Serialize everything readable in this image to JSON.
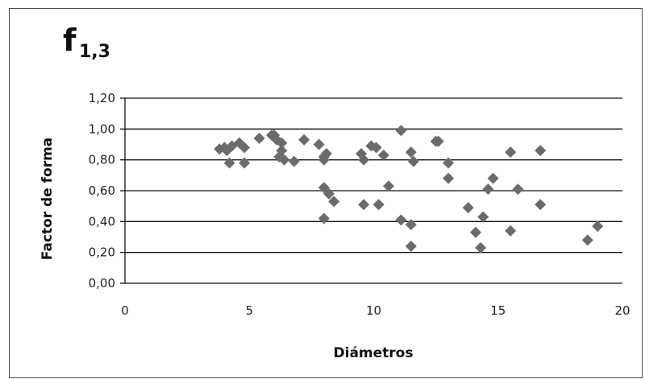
{
  "chart_data": {
    "type": "scatter",
    "title": "f",
    "title_subscript": "1,3",
    "xlabel": "Diámetros",
    "ylabel": "Factor de forma",
    "xlim": [
      0,
      20
    ],
    "ylim": [
      0,
      1.2
    ],
    "x_ticks": [
      "0",
      "5",
      "10",
      "15",
      "20"
    ],
    "y_ticks": [
      "0,00",
      "0,20",
      "0,40",
      "0,60",
      "0,80",
      "1,00",
      "1,20"
    ],
    "grid": "horizontal",
    "legend": "none",
    "marker": "diamond",
    "marker_color": "#6b6b6b",
    "points": [
      {
        "x": 3.8,
        "y": 0.87
      },
      {
        "x": 4.0,
        "y": 0.88
      },
      {
        "x": 4.1,
        "y": 0.86
      },
      {
        "x": 4.2,
        "y": 0.78
      },
      {
        "x": 4.3,
        "y": 0.89
      },
      {
        "x": 4.6,
        "y": 0.91
      },
      {
        "x": 4.8,
        "y": 0.88
      },
      {
        "x": 4.8,
        "y": 0.78
      },
      {
        "x": 5.4,
        "y": 0.94
      },
      {
        "x": 5.9,
        "y": 0.96
      },
      {
        "x": 6.0,
        "y": 0.96
      },
      {
        "x": 6.1,
        "y": 0.93
      },
      {
        "x": 6.2,
        "y": 0.82
      },
      {
        "x": 6.3,
        "y": 0.86
      },
      {
        "x": 6.3,
        "y": 0.91
      },
      {
        "x": 6.4,
        "y": 0.8
      },
      {
        "x": 6.8,
        "y": 0.79
      },
      {
        "x": 7.2,
        "y": 0.93
      },
      {
        "x": 7.8,
        "y": 0.9
      },
      {
        "x": 8.0,
        "y": 0.8
      },
      {
        "x": 8.0,
        "y": 0.82
      },
      {
        "x": 8.0,
        "y": 0.62
      },
      {
        "x": 8.0,
        "y": 0.42
      },
      {
        "x": 8.1,
        "y": 0.84
      },
      {
        "x": 8.2,
        "y": 0.58
      },
      {
        "x": 8.4,
        "y": 0.53
      },
      {
        "x": 9.5,
        "y": 0.84
      },
      {
        "x": 9.6,
        "y": 0.8
      },
      {
        "x": 9.6,
        "y": 0.51
      },
      {
        "x": 9.9,
        "y": 0.89
      },
      {
        "x": 10.1,
        "y": 0.88
      },
      {
        "x": 10.2,
        "y": 0.51
      },
      {
        "x": 10.4,
        "y": 0.83
      },
      {
        "x": 10.6,
        "y": 0.63
      },
      {
        "x": 11.1,
        "y": 0.99
      },
      {
        "x": 11.1,
        "y": 0.41
      },
      {
        "x": 11.5,
        "y": 0.85
      },
      {
        "x": 11.5,
        "y": 0.38
      },
      {
        "x": 11.6,
        "y": 0.79
      },
      {
        "x": 11.5,
        "y": 0.24
      },
      {
        "x": 12.5,
        "y": 0.92
      },
      {
        "x": 12.6,
        "y": 0.92
      },
      {
        "x": 13.0,
        "y": 0.78
      },
      {
        "x": 13.0,
        "y": 0.68
      },
      {
        "x": 13.8,
        "y": 0.49
      },
      {
        "x": 14.1,
        "y": 0.33
      },
      {
        "x": 14.3,
        "y": 0.23
      },
      {
        "x": 14.4,
        "y": 0.43
      },
      {
        "x": 14.6,
        "y": 0.61
      },
      {
        "x": 14.8,
        "y": 0.68
      },
      {
        "x": 15.5,
        "y": 0.85
      },
      {
        "x": 15.5,
        "y": 0.34
      },
      {
        "x": 15.8,
        "y": 0.61
      },
      {
        "x": 16.7,
        "y": 0.86
      },
      {
        "x": 16.7,
        "y": 0.51
      },
      {
        "x": 18.6,
        "y": 0.28
      },
      {
        "x": 19.0,
        "y": 0.37
      }
    ]
  }
}
